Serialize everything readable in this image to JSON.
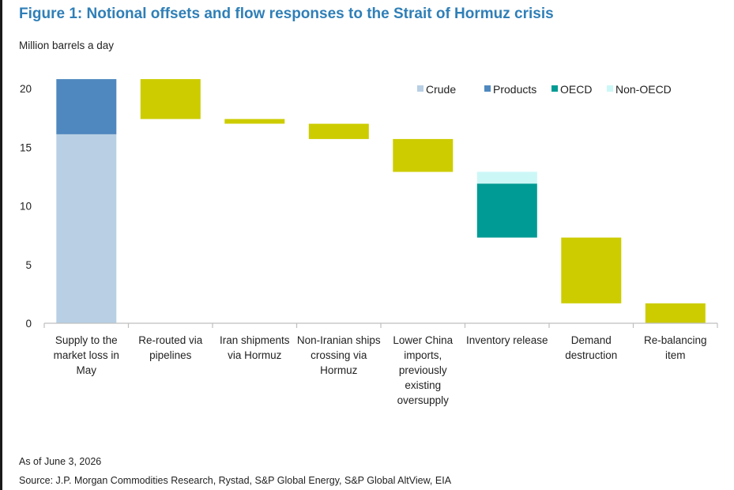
{
  "figure": {
    "title": "Figure 1: Notional offsets and flow responses to the Strait of Hormuz crisis",
    "unit_label": "Million barrels a day",
    "as_of": "As of June 3, 2026",
    "source": "Source: J.P. Morgan Commodities Research, Rystad, S&P Global Energy, S&P Global AltView, EIA"
  },
  "chart_data": {
    "type": "bar",
    "subtype": "waterfall",
    "title": "Figure 1: Notional offsets and flow responses to the Strait of Hormuz crisis",
    "ylabel": "Million barrels a day",
    "xlabel": "",
    "ylim": [
      0,
      21
    ],
    "yticks": [
      0,
      5,
      10,
      15,
      20
    ],
    "grid": false,
    "legend_position": "top-right",
    "categories": [
      "Supply to the market loss in May",
      "Re-routed via pipelines",
      "Iran shipments via Hormuz",
      "Non-Iranian ships crossing via Hormuz",
      "Lower China imports, previously existing oversupply",
      "Inventory release",
      "Demand destruction",
      "Re-balancing item"
    ],
    "category_lines": [
      [
        "Supply to the",
        "market loss in",
        "May"
      ],
      [
        "Re-routed via",
        "pipelines"
      ],
      [
        "Iran shipments",
        "via Hormuz"
      ],
      [
        "Non-Iranian ships",
        "crossing via",
        "Hormuz"
      ],
      [
        "Lower China",
        "imports,",
        "previously",
        "existing",
        "oversupply"
      ],
      [
        "Inventory release"
      ],
      [
        "Demand",
        "destruction"
      ],
      [
        "Re-balancing",
        "item"
      ]
    ],
    "series": [
      {
        "name": "Crude",
        "color": "#b8cfe4"
      },
      {
        "name": "Products",
        "color": "#4f88bf"
      },
      {
        "name": "OECD",
        "color": "#009b94"
      },
      {
        "name": "Non-OECD",
        "color": "#ccf7f7"
      }
    ],
    "offset_color": "#cccc00",
    "bars": [
      {
        "category": 0,
        "segments": [
          {
            "series": "Crude",
            "from": 0,
            "to": 16.1
          },
          {
            "series": "Products",
            "from": 16.1,
            "to": 20.8
          }
        ]
      },
      {
        "category": 1,
        "segments": [
          {
            "series": null,
            "from": 17.4,
            "to": 20.8
          }
        ]
      },
      {
        "category": 2,
        "segments": [
          {
            "series": null,
            "from": 17.0,
            "to": 17.4
          }
        ]
      },
      {
        "category": 3,
        "segments": [
          {
            "series": null,
            "from": 15.7,
            "to": 17.0
          }
        ]
      },
      {
        "category": 4,
        "segments": [
          {
            "series": null,
            "from": 12.9,
            "to": 15.7
          }
        ]
      },
      {
        "category": 5,
        "segments": [
          {
            "series": "OECD",
            "from": 7.3,
            "to": 11.9
          },
          {
            "series": "Non-OECD",
            "from": 11.9,
            "to": 12.9
          }
        ]
      },
      {
        "category": 6,
        "segments": [
          {
            "series": null,
            "from": 1.7,
            "to": 7.3
          }
        ]
      },
      {
        "category": 7,
        "segments": [
          {
            "series": null,
            "from": 0,
            "to": 1.7
          }
        ]
      }
    ]
  }
}
